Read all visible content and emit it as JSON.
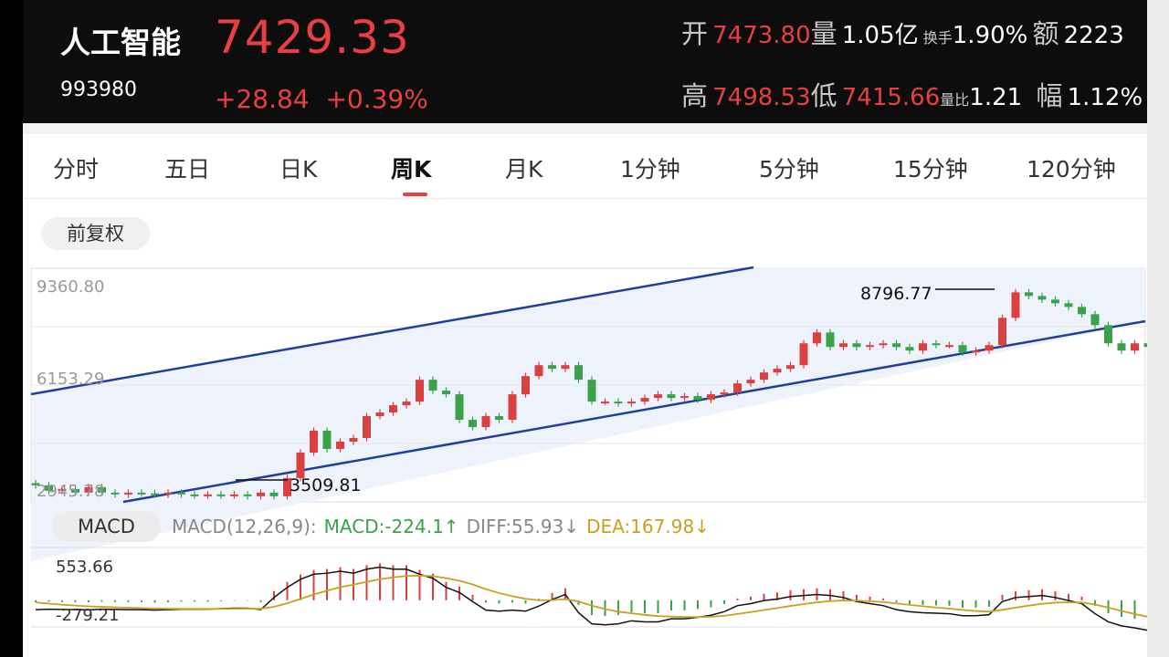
{
  "stock": {
    "name": "人工智能",
    "price": "7429.33",
    "code": "993980",
    "change": "+28.84",
    "change_pct": "+0.39%"
  },
  "stats": {
    "open_label": "开",
    "open": "7473.80",
    "volume_label": "量",
    "volume": "1.05亿",
    "turnover_label": "换手",
    "turnover": "1.90%",
    "amount_label": "额",
    "amount": "2223",
    "high_label": "高",
    "high": "7498.53",
    "low_label": "低",
    "low": "7415.66",
    "vol_ratio_label": "量比",
    "vol_ratio": "1.21",
    "amplitude_label": "幅",
    "amplitude": "1.12%"
  },
  "tabs": [
    {
      "label": "分时",
      "active": false
    },
    {
      "label": "五日",
      "active": false
    },
    {
      "label": "日K",
      "active": false
    },
    {
      "label": "周K",
      "active": true
    },
    {
      "label": "月K",
      "active": false
    },
    {
      "label": "1分钟",
      "active": false
    },
    {
      "label": "5分钟",
      "active": false
    },
    {
      "label": "15分钟",
      "active": false
    },
    {
      "label": "120分钟",
      "active": false
    }
  ],
  "adjust_button": "前复权",
  "chart_data": {
    "type": "candlestick",
    "y_ticks": [
      "9360.80",
      "6153.29",
      "2945.78"
    ],
    "annotations": [
      {
        "label": "8796.77",
        "value": 8796.77
      },
      {
        "label": "3509.81",
        "value": 3509.81
      }
    ],
    "up_color": "#d94040",
    "down_color": "#3aa24a",
    "channel_color": "#1f3fa0",
    "weekly_closes_approx": [
      3400,
      3250,
      3300,
      3200,
      3350,
      3200,
      3150,
      3200,
      3180,
      3150,
      3200,
      3150,
      3120,
      3150,
      3120,
      3150,
      3100,
      3200,
      3100,
      3600,
      4300,
      4900,
      4400,
      4600,
      4700,
      5300,
      5400,
      5600,
      5700,
      6300,
      6000,
      5900,
      5200,
      5000,
      5300,
      5200,
      5900,
      6400,
      6700,
      6600,
      6700,
      6300,
      5700,
      5700,
      5650,
      5700,
      5800,
      5900,
      5800,
      5850,
      5750,
      5900,
      5950,
      6200,
      6300,
      6500,
      6600,
      6700,
      7300,
      7600,
      7200,
      7300,
      7200,
      7250,
      7300,
      7200,
      7100,
      7300,
      7250,
      7250,
      7050,
      7100,
      7250,
      8000,
      8700,
      8600,
      8500,
      8400,
      8300,
      8100,
      7800,
      7300,
      7100,
      7300,
      7200
    ]
  },
  "macd": {
    "button": "MACD",
    "params": "MACD(12,26,9):",
    "macd_label": "MACD:-224.1↑",
    "diff_label": "DIFF:55.93↓",
    "dea_label": "DEA:167.98↓",
    "y_ticks": [
      "553.66",
      "-279.21"
    ],
    "macd_color": "#3aa24a",
    "diff_color": "#888888",
    "dea_color": "#c9a020",
    "bars_approx": [
      -20,
      -15,
      -18,
      -20,
      -22,
      -15,
      -18,
      -20,
      -20,
      -25,
      -20,
      -15,
      -15,
      -15,
      -10,
      -5,
      -5,
      -20,
      100,
      200,
      280,
      330,
      340,
      360,
      340,
      380,
      400,
      380,
      380,
      330,
      290,
      200,
      150,
      60,
      -25,
      -35,
      -25,
      -35,
      15,
      80,
      130,
      -50,
      -160,
      -170,
      -160,
      -130,
      -140,
      -140,
      -110,
      -110,
      -95,
      -75,
      -40,
      20,
      40,
      70,
      85,
      110,
      120,
      130,
      120,
      100,
      60,
      40,
      20,
      -20,
      -40,
      -50,
      -55,
      -60,
      -80,
      -80,
      -70,
      60,
      100,
      110,
      120,
      100,
      70,
      40,
      -60,
      -140,
      -180,
      -200,
      -224
    ]
  }
}
